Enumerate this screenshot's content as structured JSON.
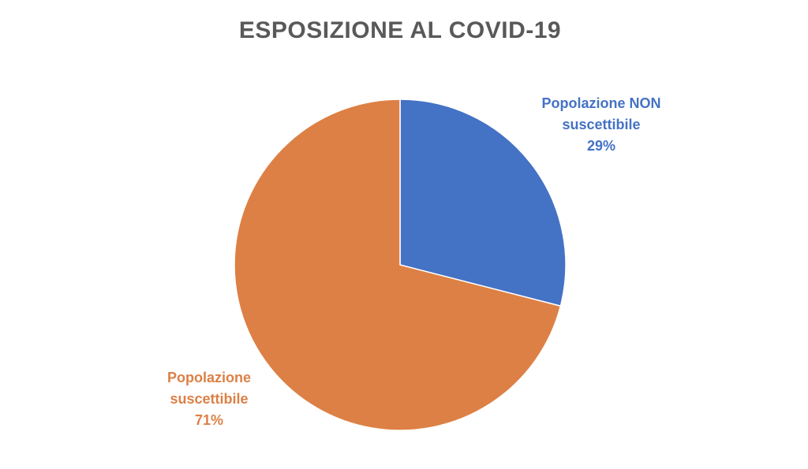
{
  "chart_data": {
    "type": "pie",
    "title": "ESPOSIZIONE AL COVID-19",
    "categories": [
      "Popolazione NON suscettibile",
      "Popolazione suscettibile"
    ],
    "values": [
      29,
      71
    ],
    "value_labels": [
      "29%",
      "71%"
    ],
    "colors": [
      "#4472c4",
      "#dd8045"
    ]
  }
}
